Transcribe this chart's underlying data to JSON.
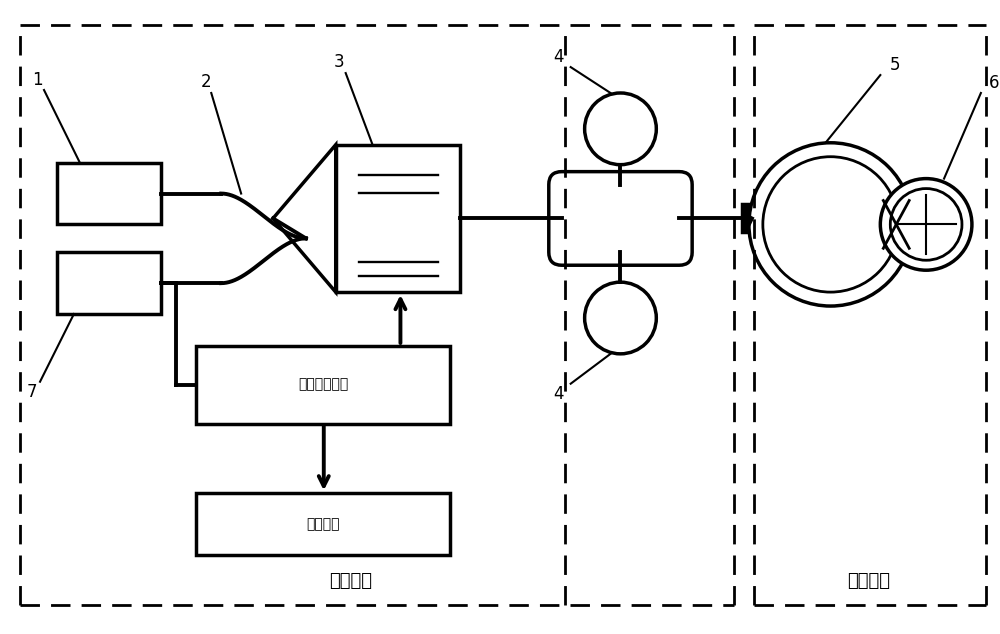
{
  "bg_color": "#ffffff",
  "fg_color": "#000000",
  "fig_width": 10.0,
  "fig_height": 6.34,
  "dpi": 100,
  "label_1": "1",
  "label_2": "2",
  "label_3": "3",
  "label_4_top": "4",
  "label_4_bot": "4",
  "label_5": "5",
  "label_6": "6",
  "label_7": "7",
  "text_control": "控制单元",
  "text_sensing": "传感单元",
  "text_signal": "信号采集单元",
  "text_merge": "合并单元"
}
